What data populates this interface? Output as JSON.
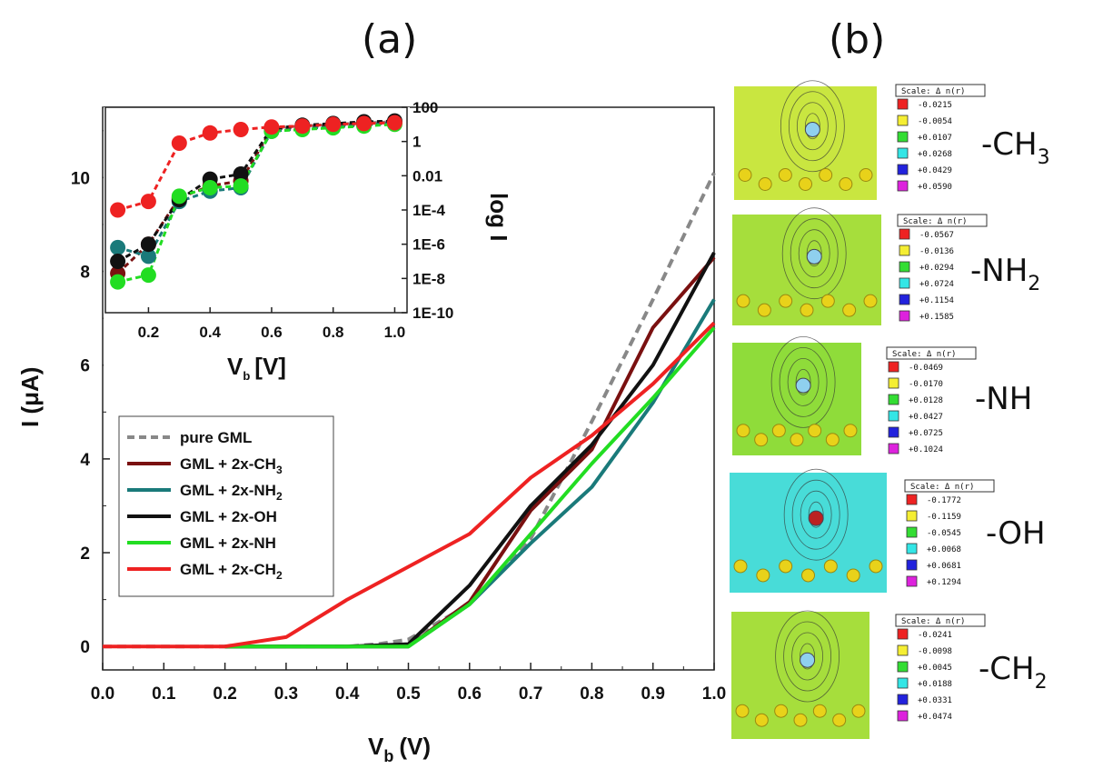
{
  "panel_a_label": "(a)",
  "panel_b_label": "(b)",
  "chart_data": [
    {
      "type": "line",
      "xlabel_main": "V",
      "xlabel_sub": "b",
      "xlabel_unit": "(V)",
      "ylabel": "I (μA)",
      "xlim": [
        0.0,
        1.0
      ],
      "ylim": [
        -0.5,
        11.5
      ],
      "x_ticks": [
        "0.0",
        "0.1",
        "0.2",
        "0.3",
        "0.4",
        "0.5",
        "0.6",
        "0.7",
        "0.8",
        "0.9",
        "1.0"
      ],
      "y_ticks": [
        "0",
        "2",
        "4",
        "6",
        "8",
        "10"
      ],
      "legend_position": "lower-left",
      "series": [
        {
          "name_main": "pure GML",
          "name_sub": "",
          "color": "#888888",
          "dashed": true,
          "x": [
            0.0,
            0.1,
            0.2,
            0.3,
            0.4,
            0.45,
            0.5,
            0.6,
            0.7,
            0.8,
            0.9,
            1.0
          ],
          "y": [
            0,
            0,
            0,
            0,
            0,
            0.05,
            0.15,
            0.9,
            2.3,
            4.8,
            7.4,
            10.1
          ]
        },
        {
          "name_main": "GML + 2x-CH",
          "name_sub": "3",
          "color": "#7a1010",
          "dashed": false,
          "x": [
            0.2,
            0.3,
            0.4,
            0.5,
            0.6,
            0.7,
            0.8,
            0.9,
            1.0
          ],
          "y": [
            0,
            0,
            0,
            0,
            0.95,
            2.9,
            4.2,
            6.8,
            8.3
          ]
        },
        {
          "name_main": "GML + 2x-NH",
          "name_sub": "2",
          "color": "#1a7a7a",
          "dashed": false,
          "x": [
            0.2,
            0.3,
            0.4,
            0.5,
            0.6,
            0.7,
            0.8,
            0.9,
            1.0
          ],
          "y": [
            0,
            0,
            0,
            0,
            0.9,
            2.2,
            3.4,
            5.2,
            7.4
          ]
        },
        {
          "name_main": "GML + 2x-OH",
          "name_sub": "",
          "color": "#111111",
          "dashed": false,
          "x": [
            0.2,
            0.3,
            0.4,
            0.5,
            0.6,
            0.7,
            0.8,
            0.9,
            1.0
          ],
          "y": [
            0,
            0,
            0,
            0.05,
            1.3,
            3.0,
            4.3,
            6.0,
            8.4
          ]
        },
        {
          "name_main": "GML + 2x-NH",
          "name_sub": "",
          "color": "#22dd22",
          "dashed": false,
          "x": [
            0.2,
            0.3,
            0.4,
            0.5,
            0.6,
            0.7,
            0.8,
            0.9,
            1.0
          ],
          "y": [
            0,
            0,
            0,
            0,
            0.9,
            2.4,
            3.9,
            5.3,
            6.8
          ]
        },
        {
          "name_main": "GML + 2x-CH",
          "name_sub": "2",
          "color": "#ee2222",
          "dashed": false,
          "x": [
            0.0,
            0.1,
            0.2,
            0.3,
            0.4,
            0.5,
            0.6,
            0.7,
            0.8,
            0.9,
            1.0
          ],
          "y": [
            0,
            0,
            0,
            0.2,
            1.0,
            1.7,
            2.4,
            3.6,
            4.5,
            5.6,
            6.9
          ]
        }
      ]
    },
    {
      "type": "line",
      "scale": "log",
      "xlabel_main": "V",
      "xlabel_sub": "b",
      "xlabel_unit": "[V]",
      "ylabel": "log I",
      "xlim": [
        0.06,
        1.04
      ],
      "ylim_exp": [
        -10,
        2
      ],
      "x_ticks": [
        "0.2",
        "0.4",
        "0.6",
        "0.8",
        "1.0"
      ],
      "y_ticks": [
        "100",
        "1",
        "0.01",
        "1E-4",
        "1E-6",
        "1E-8",
        "1E-10"
      ],
      "series": [
        {
          "name": "pure GML",
          "color": "#888888",
          "x": [
            0.6,
            0.7,
            0.8,
            0.9,
            1.0
          ],
          "log10_y": [
            0.8,
            0.9,
            1.0,
            1.1,
            1.15
          ]
        },
        {
          "name": "GML + 2x-CH3",
          "color": "#7a1010",
          "x": [
            0.1,
            0.2,
            0.3,
            0.4,
            0.5,
            0.6,
            0.7,
            0.8,
            0.9,
            1.0
          ],
          "log10_y": [
            -7.7,
            -6.0,
            -3.3,
            -2.6,
            -2.3,
            0.7,
            0.85,
            0.95,
            1.0,
            1.1
          ]
        },
        {
          "name": "GML + 2x-NH2",
          "color": "#1a7a7a",
          "x": [
            0.1,
            0.2,
            0.3,
            0.4,
            0.5,
            0.6,
            0.7,
            0.8,
            0.9,
            1.0
          ],
          "log10_y": [
            -6.2,
            -6.7,
            -3.5,
            -2.9,
            -2.7,
            0.6,
            0.75,
            0.85,
            0.95,
            1.1
          ]
        },
        {
          "name": "GML + 2x-OH",
          "color": "#111111",
          "x": [
            0.1,
            0.2,
            0.3,
            0.4,
            0.5,
            0.6,
            0.7,
            0.8,
            0.9,
            1.0
          ],
          "log10_y": [
            -7.0,
            -6.0,
            -3.4,
            -2.2,
            -1.9,
            0.75,
            0.95,
            1.05,
            1.15,
            1.2
          ]
        },
        {
          "name": "GML + 2x-NH",
          "color": "#22dd22",
          "x": [
            0.1,
            0.2,
            0.3,
            0.4,
            0.5,
            0.6,
            0.7,
            0.8,
            0.9,
            1.0
          ],
          "log10_y": [
            -8.2,
            -7.8,
            -3.2,
            -2.7,
            -2.6,
            0.6,
            0.7,
            0.8,
            0.9,
            1.0
          ]
        },
        {
          "name": "GML + 2x-CH2",
          "color": "#ee2222",
          "x": [
            0.1,
            0.2,
            0.3,
            0.4,
            0.5,
            0.6,
            0.7,
            0.8,
            0.9,
            1.0
          ],
          "log10_y": [
            -4.0,
            -3.5,
            -0.1,
            0.5,
            0.7,
            0.85,
            0.9,
            1.0,
            1.05,
            1.1
          ]
        }
      ]
    }
  ],
  "density_maps": [
    {
      "molecule_main": "-CH",
      "molecule_sub": "3",
      "scale_title": "Scale:   Δ n(r)",
      "scale_values": [
        "-0.0215",
        "-0.0054",
        "+0.0107",
        "+0.0268",
        "+0.0429",
        "+0.0590"
      ],
      "background": "#c9e640"
    },
    {
      "molecule_main": "-NH",
      "molecule_sub": "2",
      "scale_title": "Scale:   Δ n(r)",
      "scale_values": [
        "-0.0567",
        "-0.0136",
        "+0.0294",
        "+0.0724",
        "+0.1154",
        "+0.1585"
      ],
      "background": "#a6de3c"
    },
    {
      "molecule_main": "-NH",
      "molecule_sub": "",
      "scale_title": "Scale:   Δ n(r)",
      "scale_values": [
        "-0.0469",
        "-0.0170",
        "+0.0128",
        "+0.0427",
        "+0.0725",
        "+0.1024"
      ],
      "background": "#8fdc3a"
    },
    {
      "molecule_main": "-OH",
      "molecule_sub": "",
      "scale_title": "Scale:   Δ n(r)",
      "scale_values": [
        "-0.1772",
        "-0.1159",
        "-0.0545",
        "+0.0068",
        "+0.0681",
        "+0.1294"
      ],
      "background": "#48dcd8"
    },
    {
      "molecule_main": "-CH",
      "molecule_sub": "2",
      "scale_title": "Scale:   Δ n(r)",
      "scale_values": [
        "-0.0241",
        "-0.0098",
        "+0.0045",
        "+0.0188",
        "+0.0331",
        "+0.0474"
      ],
      "background": "#a6de3c"
    }
  ],
  "scale_swatch_colors": [
    "#ee2222",
    "#f5ee33",
    "#33dd33",
    "#33e6e6",
    "#2222dd",
    "#dd22dd"
  ]
}
